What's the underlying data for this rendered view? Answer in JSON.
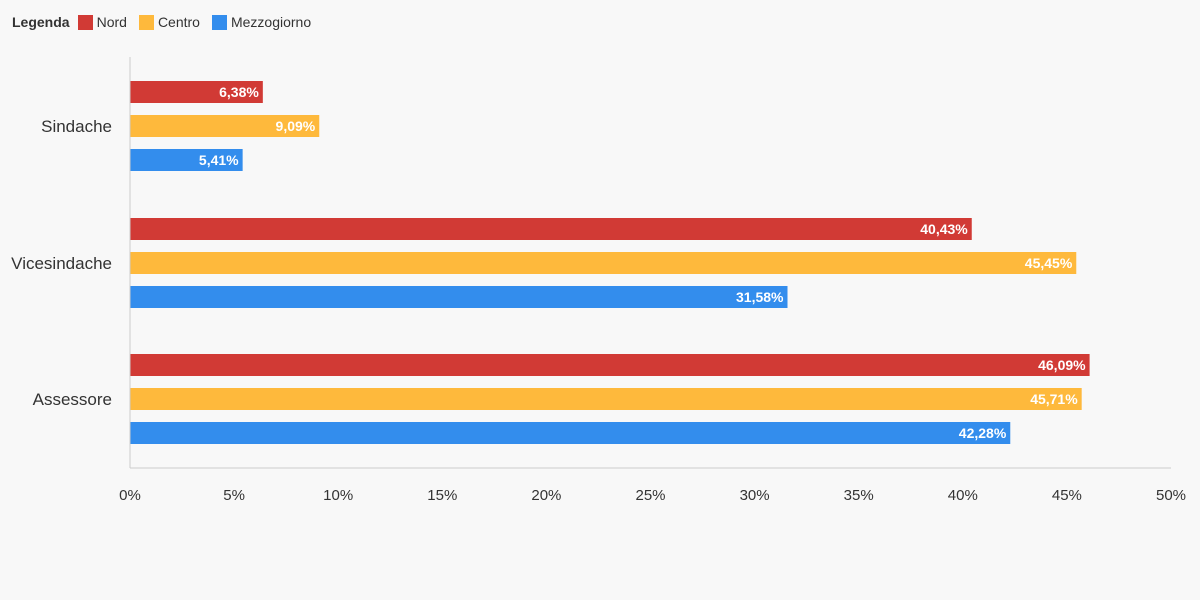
{
  "legend": {
    "title": "Legenda"
  },
  "chart_data": {
    "type": "bar",
    "orientation": "horizontal",
    "categories": [
      "Sindache",
      "Vicesindache",
      "Assessore"
    ],
    "series": [
      {
        "name": "Nord",
        "color": "#d13a35",
        "values": [
          6.38,
          40.43,
          46.09
        ],
        "labels": [
          "6,38%",
          "40,43%",
          "46,09%"
        ]
      },
      {
        "name": "Centro",
        "color": "#feb93c",
        "values": [
          9.09,
          45.45,
          45.71
        ],
        "labels": [
          "9,09%",
          "45,45%",
          "45,71%"
        ]
      },
      {
        "name": "Mezzogiorno",
        "color": "#338ded",
        "values": [
          5.41,
          31.58,
          42.28
        ],
        "labels": [
          "5,41%",
          "31,58%",
          "42,28%"
        ]
      }
    ],
    "xlim": [
      0,
      50
    ],
    "xticks": [
      0,
      5,
      10,
      15,
      20,
      25,
      30,
      35,
      40,
      45,
      50
    ],
    "xtick_labels": [
      "0%",
      "5%",
      "10%",
      "15%",
      "20%",
      "25%",
      "30%",
      "35%",
      "40%",
      "45%",
      "50%"
    ],
    "grid": false,
    "legend_position": "top-left"
  }
}
